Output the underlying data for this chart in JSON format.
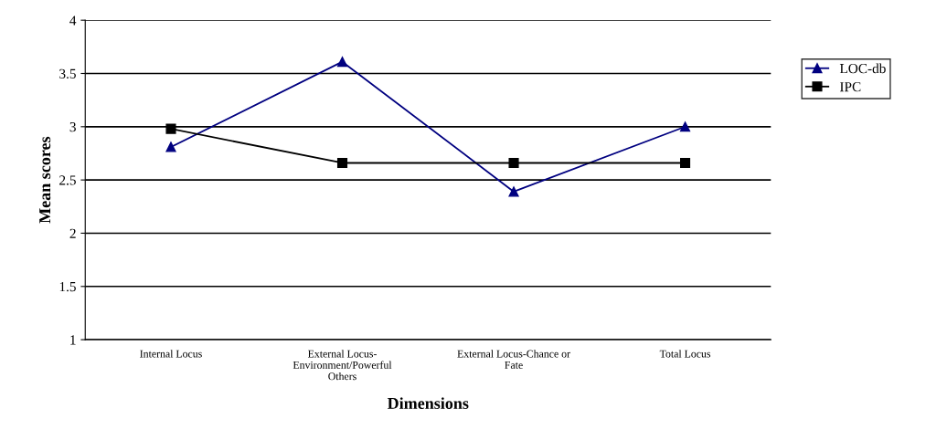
{
  "chart_data": {
    "type": "line",
    "xlabel": "Dimensions",
    "ylabel": "Mean scores",
    "categories": [
      "Internal Locus",
      "External Locus-\nEnvironment/Powerful\nOthers",
      "External Locus-Chance or\nFate",
      "Total Locus"
    ],
    "series": [
      {
        "name": "LOC-db",
        "color": "#000080",
        "values": [
          2.81,
          3.61,
          2.39,
          3.0
        ],
        "marker": "triangle"
      },
      {
        "name": "IPC",
        "color": "#000000",
        "values": [
          2.98,
          2.66,
          2.66,
          2.66
        ],
        "marker": "square"
      }
    ],
    "ylim": [
      1,
      4
    ],
    "yticks": [
      1,
      1.5,
      2,
      2.5,
      3,
      3.5,
      4
    ],
    "grid": "y",
    "legend": "right",
    "line_style": "solid"
  }
}
